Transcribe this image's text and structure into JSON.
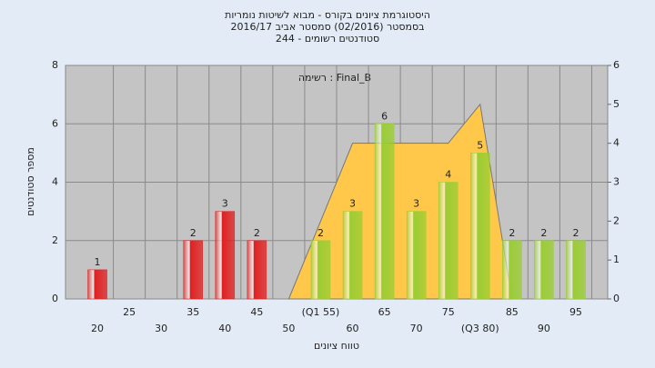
{
  "chart_data": {
    "type": "bar",
    "title": [
      "היסטוגרמת ציונים בקורס - מבוא לשיטות נומריות",
      "בסמסטר  (02/2016)  סמסטר אביב 2016/17",
      "סטודנטים רשומים - 244"
    ],
    "annotation": "רשימה : Final_B",
    "x_label": "טווח ציונים",
    "y_label": "מספר סטודנטים",
    "x": [
      20,
      25,
      30,
      35,
      40,
      45,
      50,
      55,
      60,
      65,
      70,
      75,
      80,
      85,
      90,
      95
    ],
    "values": [
      1,
      0,
      0,
      2,
      3,
      2,
      0,
      2,
      3,
      6,
      3,
      4,
      5,
      2,
      2,
      2
    ],
    "bar_colors": [
      "#e02020",
      "#e02020",
      "#e02020",
      "#e02020",
      "#e02020",
      "#e02020",
      "#e02020",
      "#9acd32",
      "#9acd32",
      "#9acd32",
      "#9acd32",
      "#9acd32",
      "#9acd32",
      "#9acd32",
      "#9acd32",
      "#9acd32"
    ],
    "area": {
      "color": "#ffc84a",
      "axis": "y2",
      "x": [
        50,
        60,
        75,
        80,
        85
      ],
      "values": [
        0,
        4,
        4,
        5,
        0
      ]
    },
    "xlim": [
      15,
      100
    ],
    "xticks": [
      20,
      25,
      30,
      35,
      40,
      45,
      50,
      {
        "value": 55,
        "label": "(Q1 55)"
      },
      60,
      65,
      70,
      75,
      {
        "value": 80,
        "label": "(Q3 80)"
      },
      85,
      90,
      95
    ],
    "ylim": [
      0,
      8
    ],
    "yticks": [
      0,
      2,
      4,
      6,
      8
    ],
    "y2lim": [
      0,
      6
    ],
    "y2ticks": [
      0,
      1,
      2,
      3,
      4,
      5,
      6
    ],
    "grid": true
  }
}
